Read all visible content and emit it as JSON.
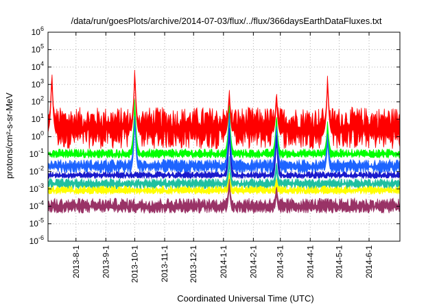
{
  "chart_data": {
    "type": "area",
    "title": "/data/run/goesPlots/archive/2014-07-03/flux/../flux/366daysEarthDataFluxes.txt",
    "xlabel": "Coordinated Universal Time (UTC)",
    "ylabel": "protons/cm²-s-sr-MeV",
    "yscale": "log",
    "ylim": [
      1e-06,
      1000000.0
    ],
    "xlim": [
      "2013-07-03",
      "2014-07-03"
    ],
    "grid": true,
    "x_ticks": [
      "2013-8-1",
      "2013-9-1",
      "2013-10-1",
      "2013-11-1",
      "2013-12-1",
      "2014-1-1",
      "2014-2-1",
      "2014-3-1",
      "2014-4-1",
      "2014-5-1",
      "2014-6-1"
    ],
    "y_tick_exponents": [
      -6,
      -5,
      -4,
      -3,
      -2,
      -1,
      0,
      1,
      2,
      3,
      4,
      5,
      6
    ],
    "series": [
      {
        "color": "#ff0000",
        "baseline": 3,
        "low": 0.2,
        "high": 50,
        "events": [
          {
            "date": "2013-07-07",
            "peak": 10000
          },
          {
            "date": "2013-10-01",
            "peak": 15000
          },
          {
            "date": "2014-01-07",
            "peak": 700
          },
          {
            "date": "2014-02-25",
            "peak": 600
          },
          {
            "date": "2014-04-19",
            "peak": 5000
          }
        ]
      },
      {
        "color": "#00ff00",
        "baseline": 0.1,
        "low": 0.06,
        "high": 0.2,
        "events": [
          {
            "date": "2013-10-01",
            "peak": 300
          },
          {
            "date": "2014-01-07",
            "peak": 100
          },
          {
            "date": "2014-02-25",
            "peak": 30
          },
          {
            "date": "2014-04-19",
            "peak": 10
          }
        ]
      },
      {
        "color": "#1e64ff",
        "baseline": 0.02,
        "low": 0.008,
        "high": 0.05,
        "events": [
          {
            "date": "2013-10-01",
            "peak": 30
          },
          {
            "date": "2014-01-07",
            "peak": 40
          },
          {
            "date": "2014-02-25",
            "peak": 10
          },
          {
            "date": "2014-04-19",
            "peak": 2
          }
        ]
      },
      {
        "color": "#1a1acc",
        "baseline": 0.006,
        "low": 0.004,
        "high": 0.01,
        "events": [
          {
            "date": "2014-01-07",
            "peak": 5
          },
          {
            "date": "2014-02-25",
            "peak": 3
          }
        ]
      },
      {
        "color": "#20c0a0",
        "baseline": 0.002,
        "low": 0.001,
        "high": 0.004,
        "events": [
          {
            "date": "2014-01-07",
            "peak": 0.1
          },
          {
            "date": "2014-02-25",
            "peak": 0.05
          }
        ]
      },
      {
        "color": "#ffff00",
        "baseline": 0.0008,
        "low": 0.0005,
        "high": 0.0015,
        "events": [
          {
            "date": "2014-01-07",
            "peak": 0.01
          },
          {
            "date": "2014-02-25",
            "peak": 0.005
          }
        ]
      },
      {
        "color": "#993366",
        "baseline": 0.0001,
        "low": 4e-05,
        "high": 0.0003,
        "events": [
          {
            "date": "2014-01-07",
            "peak": 0.005
          },
          {
            "date": "2014-02-25",
            "peak": 0.002
          }
        ]
      }
    ]
  }
}
